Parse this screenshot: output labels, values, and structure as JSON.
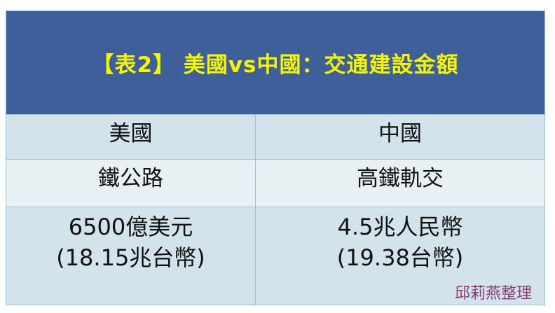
{
  "title": "【表2】 美國vs中國：交通建設金額",
  "colors": {
    "header_bg": "#3f5f9a",
    "title_text": "#f5f500",
    "row_bg": "#d3e3ec",
    "row_alt_bg": "#e8f0f4",
    "border": "#8ec3dc",
    "credit_text": "#8b3c6e"
  },
  "rows": [
    [
      "美國",
      "中國"
    ],
    [
      "鐵公路",
      "高鐵軌交"
    ],
    [
      [
        "6500億美元",
        "(18.15兆台幣)"
      ],
      [
        "4.5兆人民幣",
        "(19.38台幣)"
      ]
    ]
  ],
  "credit": "邱莉燕整理"
}
